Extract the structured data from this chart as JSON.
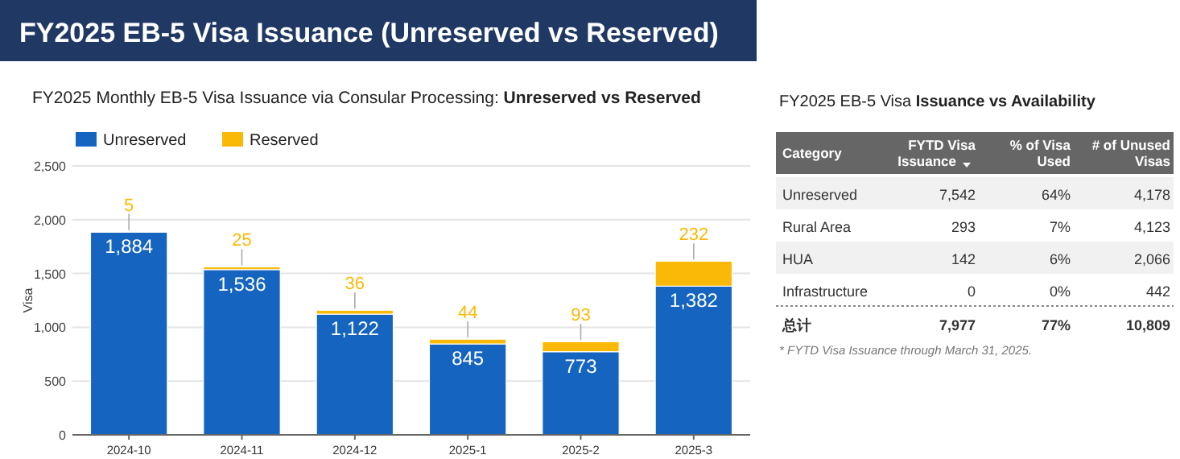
{
  "chart_data": [
    {
      "type": "bar",
      "title": "FY2025 EB-5 Visa Issuance (Unreserved vs Reserved)",
      "subtitle": "FY2025 Monthly EB-5 Visa Issuance via Consular Processing: **Unreserved vs Reserved**",
      "ylabel": "Visa",
      "stacked": true,
      "categories": [
        "2024-10",
        "2024-11",
        "2024-12",
        "2025-1",
        "2025-2",
        "2025-3"
      ],
      "series": [
        {
          "name": "Unreserved",
          "color": "#1565c0",
          "values": [
            1884,
            1536,
            1122,
            845,
            773,
            1382
          ],
          "value_labels": [
            "1,884",
            "1,536",
            "1,122",
            "845",
            "773",
            "1,382"
          ]
        },
        {
          "name": "Reserved",
          "color": "#fbb907",
          "values": [
            5,
            25,
            36,
            44,
            93,
            232
          ],
          "value_labels": [
            "5",
            "25",
            "36",
            "44",
            "93",
            "232"
          ]
        }
      ],
      "ylim": [
        0,
        2500
      ],
      "yticks": [
        0,
        {
          "value": 500,
          "label": "500"
        },
        {
          "value": 1000,
          "label": "1,000"
        },
        {
          "value": 1500,
          "label": "1,500"
        },
        {
          "value": 2000,
          "label": "2,000"
        },
        {
          "value": 2500,
          "label": "2,500"
        }
      ],
      "grid": "y",
      "legend": "top left"
    },
    {
      "type": "other",
      "title": "FY2025 EB-5 Visa **Issuance vs Availability**",
      "annotations": [
        "Category",
        "FYTD Visa Issuance",
        "% of Visa Used",
        "# of Unused Visas",
        "Unreserved",
        "7,542",
        "64%",
        "4,178",
        "Rural Area",
        "293",
        "7%",
        "4,123",
        "HUA",
        "142",
        "6%",
        "2,066",
        "Infrastructure",
        "0",
        "0%",
        "442",
        "总计",
        "7,977",
        "77%",
        "10,809",
        "* FYTD Visa Issuance through March 31, 2025."
      ]
    }
  ]
}
